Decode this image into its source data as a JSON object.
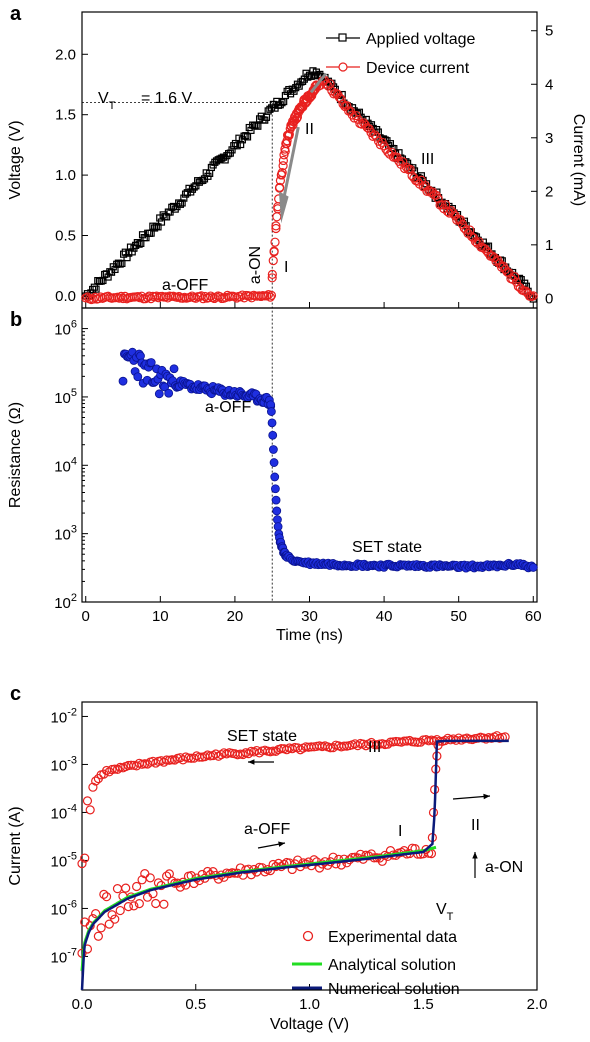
{
  "chart_data": [
    {
      "panel": "a",
      "type": "line",
      "xlabel": "",
      "ylabel": "Voltage (V)",
      "y2label": "Current (mA)",
      "xlim": [
        -0.5,
        60.5
      ],
      "ylim": [
        -0.1,
        2.35
      ],
      "y2lim": [
        -0.18,
        5.35
      ],
      "x_ticks": [
        0,
        10,
        20,
        30,
        40,
        50,
        60
      ],
      "y_ticks": [
        "0.0",
        "0.5",
        "1.0",
        "1.5",
        "2.0"
      ],
      "y2_ticks": [
        "0",
        "1",
        "2",
        "3",
        "4",
        "5"
      ],
      "series": [
        {
          "name": "Applied voltage",
          "axis": "left",
          "color": "#000000",
          "marker": "open-square",
          "x": [
            0,
            5,
            10,
            15,
            20,
            25,
            30,
            31,
            35,
            40,
            45,
            50,
            55,
            60
          ],
          "y": [
            0.0,
            0.31,
            0.62,
            0.93,
            1.24,
            1.55,
            1.85,
            1.86,
            1.6,
            1.28,
            0.96,
            0.64,
            0.32,
            0.0
          ]
        },
        {
          "name": "Device current",
          "axis": "right",
          "color": "#e8211f",
          "marker": "open-circle",
          "x": [
            0,
            5,
            10,
            15,
            20,
            24,
            24.9,
            25,
            25.5,
            26,
            27,
            28,
            29,
            30,
            31,
            32,
            35,
            40,
            45,
            50,
            55,
            60
          ],
          "y": [
            0.0,
            0.02,
            0.02,
            0.02,
            0.03,
            0.04,
            0.05,
            0.4,
            1.3,
            2.1,
            3.0,
            3.35,
            3.6,
            3.8,
            3.95,
            4.1,
            3.55,
            2.85,
            2.15,
            1.45,
            0.7,
            0.0
          ]
        }
      ],
      "threshold_label": "V_T = 1.6  V",
      "threshold_voltage": 1.6,
      "threshold_time": 25,
      "annotations": [
        "a-OFF",
        "a-ON",
        "I",
        "II",
        "III"
      ]
    },
    {
      "panel": "b",
      "type": "scatter",
      "xlabel": "Time (ns)",
      "ylabel": "Resistance (Ω)",
      "yscale": "log",
      "xlim": [
        -0.5,
        60.5
      ],
      "ylim": [
        100,
        2000000
      ],
      "x_ticks": [
        0,
        10,
        20,
        30,
        40,
        50,
        60
      ],
      "y_ticks": [
        100,
        1000,
        10000,
        100000,
        1000000
      ],
      "color": "#1f2fe0",
      "marker": "circle",
      "x": [
        5,
        6,
        7,
        8,
        10,
        12,
        14,
        16,
        18,
        20,
        22,
        24,
        24.8,
        25,
        25.2,
        25.4,
        25.6,
        25.8,
        26,
        26.5,
        27,
        28,
        30,
        35,
        40,
        45,
        50,
        55,
        58,
        60
      ],
      "y": [
        250000,
        400000,
        320000,
        210000,
        175000,
        160000,
        145000,
        130000,
        120000,
        112000,
        102000,
        92000,
        80000,
        40000,
        14000,
        5000,
        2200,
        1200,
        800,
        550,
        460,
        400,
        370,
        350,
        340,
        340,
        330,
        335,
        360,
        320
      ],
      "annotations": [
        "a-OFF",
        "SET state"
      ]
    },
    {
      "panel": "c",
      "type": "scatter",
      "xlabel": "Voltage (V)",
      "ylabel": "Current (A)",
      "yscale": "log",
      "xlim": [
        0.0,
        2.0
      ],
      "ylim": [
        2e-08,
        0.02
      ],
      "x_ticks": [
        "0.0",
        "0.5",
        "1.0",
        "1.5",
        "2.0"
      ],
      "y_ticks": [
        "10^-7",
        "10^-6",
        "10^-5",
        "10^-4",
        "10^-3",
        "10^-2"
      ],
      "series": [
        {
          "name": "Experimental data",
          "color": "#e8211f",
          "marker": "open-circle",
          "x": [
            0.0,
            0.01,
            0.02,
            0.03,
            0.05,
            0.08,
            0.1,
            0.13,
            0.15,
            0.2,
            0.3,
            0.4,
            0.5,
            0.6,
            0.7,
            0.8,
            0.9,
            1.0,
            1.1,
            1.2,
            1.3,
            1.4,
            1.5,
            1.54,
            1.55,
            1.56,
            1.58,
            1.6,
            1.7,
            1.8,
            1.86,
            1.8,
            1.6,
            1.5,
            1.4,
            1.2,
            1.0,
            0.8,
            0.6,
            0.4,
            0.2,
            0.1,
            0.05,
            0.03,
            0.02,
            0.01
          ],
          "y": [
            3e-07,
            6e-07,
            5e-07,
            4e-07,
            8e-07,
            2e-07,
            3e-07,
            5e-08,
            1e-07,
            1.5e-06,
            2.5e-06,
            3e-06,
            3.5e-06,
            4.5e-06,
            5.5e-06,
            6e-06,
            7.5e-06,
            8.5e-06,
            9.5e-06,
            1.1e-05,
            1.2e-05,
            1.4e-05,
            1.7e-05,
            2e-05,
            0.0001,
            0.0008,
            0.002,
            0.003,
            0.0034,
            0.0037,
            0.0038,
            0.0036,
            0.0032,
            0.003,
            0.0028,
            0.0024,
            0.0021,
            0.0018,
            0.0015,
            0.0012,
            0.0009,
            0.0007,
            0.0004,
            0.0002,
            5e-05,
            6e-06
          ]
        },
        {
          "name": "Analytical solution",
          "color": "#22dd22",
          "x": [
            0.0,
            0.01,
            0.03,
            0.05,
            0.1,
            0.2,
            0.3,
            0.5,
            0.7,
            0.9,
            1.1,
            1.3,
            1.5,
            1.56
          ],
          "y": [
            5e-08,
            1.8e-07,
            3.5e-07,
            5e-07,
            9e-07,
            1.7e-06,
            2.5e-06,
            4.2e-06,
            5.8e-06,
            7.5e-06,
            9.5e-06,
            1.2e-05,
            1.6e-05,
            1.9e-05
          ]
        },
        {
          "name": "Numerical solution",
          "color": "#0b1a7a",
          "x": [
            0.0,
            0.01,
            0.03,
            0.05,
            0.1,
            0.2,
            0.3,
            0.5,
            0.7,
            0.9,
            1.1,
            1.3,
            1.5,
            1.54,
            1.55,
            1.56,
            1.6,
            1.7,
            1.8,
            1.88
          ],
          "y": [
            2e-08,
            1.6e-07,
            3.2e-07,
            4.8e-07,
            8.5e-07,
            1.6e-06,
            2.4e-06,
            4e-06,
            5.6e-06,
            7.2e-06,
            9e-06,
            1.15e-05,
            1.5e-05,
            2.2e-05,
            0.0001,
            0.003,
            0.0031,
            0.0031,
            0.0031,
            0.0031
          ]
        }
      ],
      "legend_location": "lower-right",
      "annotations": [
        "SET state",
        "III",
        "a-OFF",
        "I",
        "II",
        "a-ON",
        "V_T"
      ]
    }
  ]
}
